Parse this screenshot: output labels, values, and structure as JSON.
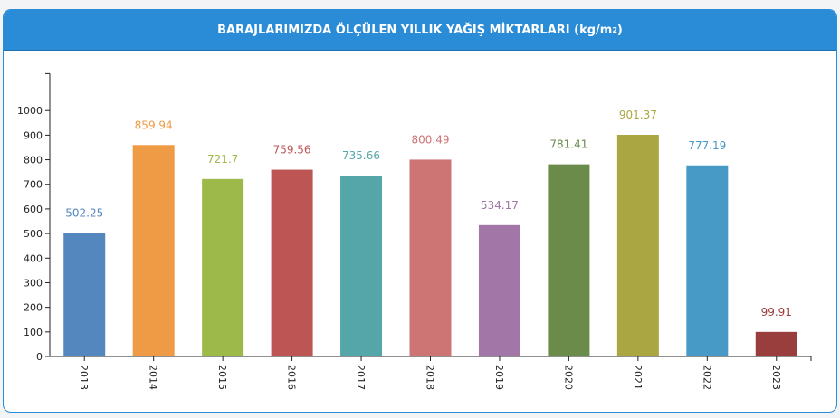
{
  "header": {
    "title_main": "BARAJLARIMIZDA ÖLÇÜLEN YILLIK YAĞIŞ MİKTARLARI (kg/m",
    "title_sup": "2",
    "title_end": ")"
  },
  "chart_data": {
    "type": "bar",
    "title": "BARAJLARIMIZDA ÖLÇÜLEN YILLIK YAĞIŞ MİKTARLARI (kg/m²)",
    "xlabel": "",
    "ylabel": "",
    "categories": [
      "2013",
      "2014",
      "2015",
      "2016",
      "2017",
      "2018",
      "2019",
      "2020",
      "2021",
      "2022",
      "2023"
    ],
    "values": [
      502.25,
      859.94,
      721.7,
      759.56,
      735.66,
      800.49,
      534.17,
      781.41,
      901.37,
      777.19,
      99.91
    ],
    "value_labels": [
      "502.25",
      "859.94",
      "721.7",
      "759.56",
      "735.66",
      "800.49",
      "534.17",
      "781.41",
      "901.37",
      "777.19",
      "99.91"
    ],
    "colors": [
      "#5487bd",
      "#ef9a45",
      "#9cb94a",
      "#bd5555",
      "#55a6a9",
      "#cd7575",
      "#a276a6",
      "#6b8b4b",
      "#aaa641",
      "#4799c6",
      "#9a3d3d"
    ],
    "label_colors": [
      "#5487bd",
      "#ef9a45",
      "#9cb94a",
      "#bd5555",
      "#55a6a9",
      "#cd7575",
      "#a276a6",
      "#6b8b4b",
      "#aaa641",
      "#4799c6",
      "#9a3d3d"
    ],
    "ylim": [
      0,
      1000
    ],
    "yticks": [
      0,
      100,
      200,
      300,
      400,
      500,
      600,
      700,
      800,
      900,
      1000
    ],
    "ymax_axis": 1150,
    "grid": false,
    "legend": "none"
  }
}
